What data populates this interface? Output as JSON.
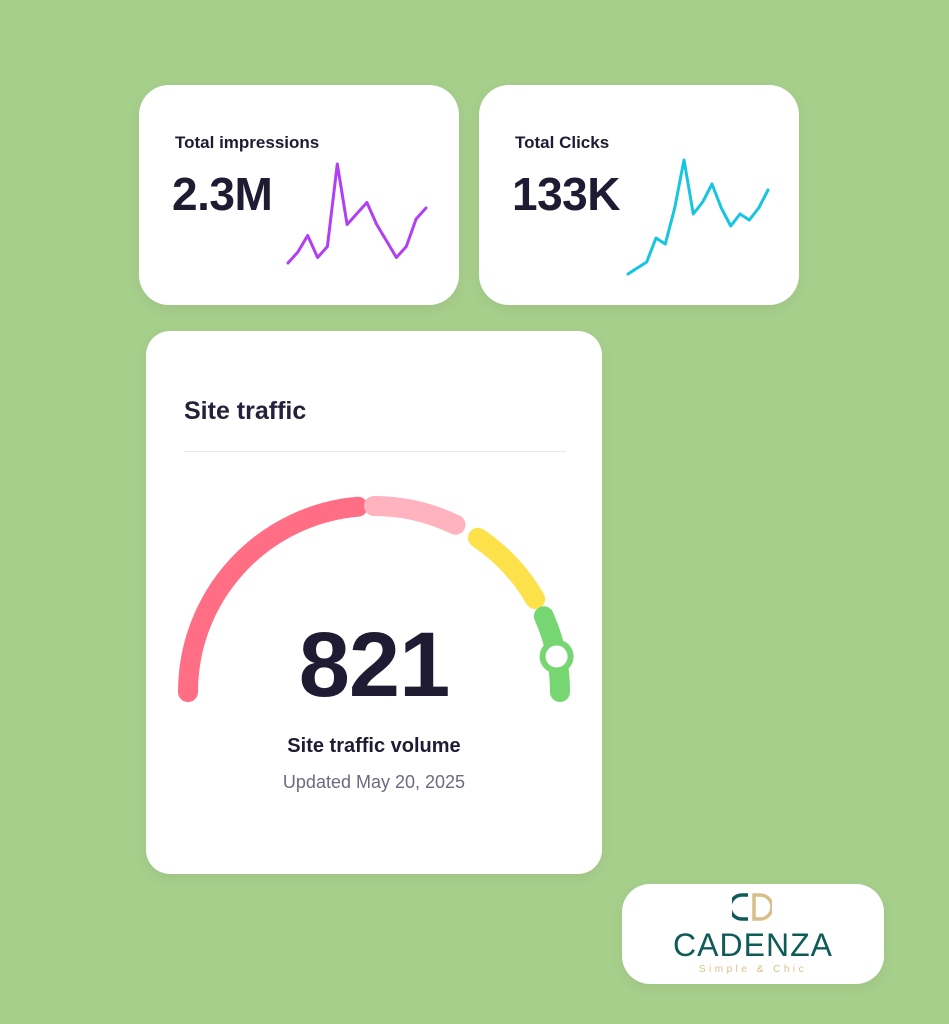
{
  "stats": {
    "impressions": {
      "label": "Total impressions",
      "value": "2.3M",
      "color": "#b23ff2",
      "trend": [
        2,
        4,
        7,
        3,
        5,
        20,
        9,
        11,
        13,
        9,
        6,
        3,
        5,
        10,
        12
      ]
    },
    "clicks": {
      "label": "Total Clicks",
      "value": "133K",
      "color": "#16c6e0",
      "trend": [
        1,
        2,
        3,
        7,
        6,
        12,
        20,
        11,
        13,
        16,
        12,
        9,
        11,
        10,
        12,
        15
      ]
    }
  },
  "traffic": {
    "title": "Site traffic",
    "value": "821",
    "caption": "Site traffic volume",
    "updated": "Updated May 20, 2025",
    "gauge_segments": [
      {
        "color": "#ff6e84"
      },
      {
        "color": "#ffb3bf"
      },
      {
        "color": "#fde14a"
      },
      {
        "color": "#76d672"
      }
    ],
    "indicator_color": "#76d672"
  },
  "brand": {
    "name": "CADENZA",
    "tagline": "Simple & Chic",
    "primary_color": "#0f5b57",
    "accent_color": "#d8bf8a"
  }
}
